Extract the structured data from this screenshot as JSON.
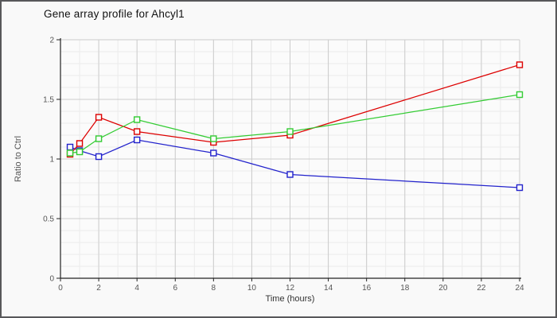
{
  "window": {
    "background": "#f9f9f9",
    "border_color": "#58585a"
  },
  "chart_data": {
    "type": "line",
    "title": "Gene array profile for Ahcyl1",
    "xlabel": "Time (hours)",
    "ylabel": "Ratio to Ctrl",
    "xlim": [
      0,
      24
    ],
    "ylim": [
      0,
      2
    ],
    "xticks": {
      "values": [
        0,
        2,
        4,
        6,
        8,
        10,
        12,
        14,
        16,
        18,
        20,
        22,
        24
      ],
      "labels": [
        "0",
        "2",
        "4",
        "6",
        "8",
        "10",
        "12",
        "14",
        "16",
        "18",
        "20",
        "22",
        "24"
      ]
    },
    "yticks": {
      "values": [
        0,
        0.5,
        1,
        1.5,
        2
      ],
      "labels": [
        "0",
        "0.5",
        "1",
        "1.5",
        "2"
      ]
    },
    "minor_grid": {
      "x_step": 1,
      "y_step": 0.1
    },
    "grid": true,
    "legend": "none",
    "marker": "open-square",
    "x": [
      0.5,
      1,
      2,
      4,
      8,
      12,
      24
    ],
    "series": [
      {
        "name": "series-blue",
        "color": "#2222cc",
        "values": [
          1.1,
          1.07,
          1.02,
          1.16,
          1.05,
          0.87,
          0.76
        ]
      },
      {
        "name": "series-red",
        "color": "#dd0000",
        "values": [
          1.04,
          1.13,
          1.35,
          1.23,
          1.14,
          1.2,
          1.79
        ]
      },
      {
        "name": "series-green",
        "color": "#33cc33",
        "values": [
          1.05,
          1.06,
          1.17,
          1.33,
          1.17,
          1.23,
          1.54
        ]
      }
    ],
    "colors": {
      "plot_background": "#fbfbfb",
      "major_grid": "#cccccc",
      "minor_grid": "#ebebeb",
      "axis": "#222222",
      "tick_label": "#555555"
    }
  }
}
